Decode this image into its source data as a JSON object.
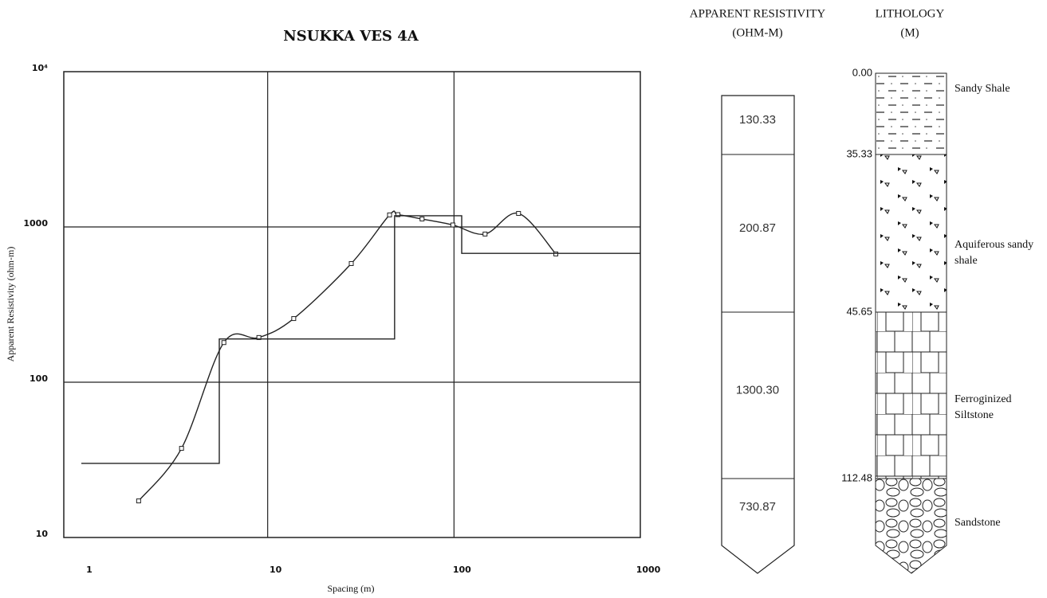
{
  "chart_data": {
    "type": "line",
    "title": "NSUKKA VES 4A",
    "xlabel": "Spacing (m)",
    "ylabel": "Apparent Resistivity (ohm-m)",
    "xscale": "log",
    "yscale": "log",
    "xlim": [
      1,
      1000
    ],
    "ylim": [
      10,
      10000
    ],
    "xticks": [
      1,
      10,
      100,
      1000
    ],
    "yticks": [
      10,
      100,
      1000,
      {
        "value": 10000,
        "label": "10⁴"
      }
    ],
    "grid": true,
    "series": [
      {
        "color": "#222",
        "marker": "square",
        "smooth": true,
        "x": [
          2.03,
          3.45,
          5.82,
          8.97,
          13.8,
          28.1,
          45.1,
          50,
          67.4,
          98.6,
          146.8,
          222,
          352
        ],
        "values": [
          17.2,
          37.5,
          180,
          194,
          257,
          581,
          1195,
          1200,
          1125,
          1030,
          900,
          1222,
          670
        ]
      },
      {
        "color": "#222",
        "marker": "none",
        "smooth": false,
        "x": [
          1,
          5.5,
          5.5,
          48,
          48,
          110,
          110,
          1000
        ],
        "values": [
          30,
          30,
          190,
          190,
          1180,
          1180,
          676,
          676
        ]
      }
    ]
  },
  "resistivity_column": {
    "title_lines": [
      "APPARENT RESISTIVITY",
      "(OHM-M)"
    ],
    "values": [
      "130.33",
      "200.87",
      "1300.30",
      "730.87"
    ]
  },
  "lithology_column": {
    "title_lines": [
      "LITHOLOGY",
      "(M)"
    ],
    "layers": [
      {
        "top": "0.00",
        "name_lines": [
          "Sandy Shale"
        ]
      },
      {
        "top": "35.33",
        "name_lines": [
          "Aquiferous sandy",
          "shale"
        ]
      },
      {
        "top": "45.65",
        "name_lines": [
          "Ferroginized",
          "Siltstone"
        ]
      },
      {
        "top": "112.48",
        "name_lines": [
          "Sandstone"
        ]
      }
    ]
  }
}
